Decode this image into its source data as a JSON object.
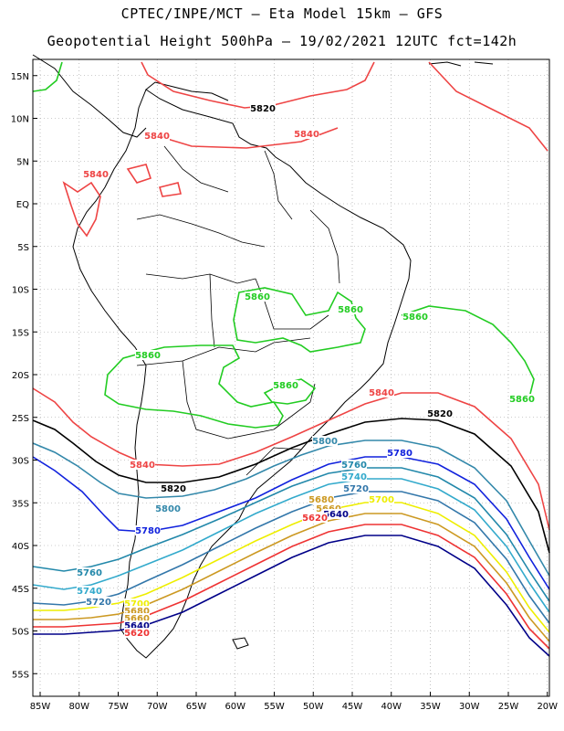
{
  "header": {
    "line1": "CPTEC/INPE/MCT –  Eta Model 15km – GFS",
    "line2": "Geopotential Height 500hPa – 19/02/2021 12UTC fct=142h"
  },
  "axes": {
    "lat_labels": [
      "15N",
      "10N",
      "5N",
      "EQ",
      "5S",
      "10S",
      "15S",
      "20S",
      "25S",
      "30S",
      "35S",
      "40S",
      "45S",
      "50S",
      "55S"
    ],
    "lon_labels": [
      "85W",
      "80W",
      "75W",
      "70W",
      "65W",
      "60W",
      "55W",
      "50W",
      "45W",
      "40W",
      "35W",
      "30W",
      "25W",
      "20W"
    ]
  },
  "colors": {
    "c5860": "#22cc22",
    "c5840": "#ee4444",
    "c5820": "#000000",
    "c5800": "#3388aa",
    "c5780": "#1122dd",
    "c5760": "#2288aa",
    "c5740": "#33aacc",
    "c5720": "#3377aa",
    "c5700": "#eeee00",
    "c5680": "#cc9922",
    "c5660": "#ee3333",
    "c5640": "#000088",
    "coast": "#000000",
    "grid": "#999999"
  },
  "contour_labels": [
    {
      "text": "5820",
      "color": "c5820"
    },
    {
      "text": "5840",
      "color": "c5840"
    },
    {
      "text": "5840",
      "color": "c5840"
    },
    {
      "text": "5840",
      "color": "c5840"
    },
    {
      "text": "5860",
      "color": "c5860"
    },
    {
      "text": "5860",
      "color": "c5860"
    },
    {
      "text": "5860",
      "color": "c5860"
    },
    {
      "text": "5860",
      "color": "c5860"
    },
    {
      "text": "5860",
      "color": "c5860"
    },
    {
      "text": "5860",
      "color": "c5860"
    },
    {
      "text": "5840",
      "color": "c5840"
    },
    {
      "text": "5820",
      "color": "c5820"
    },
    {
      "text": "5800",
      "color": "c5800"
    },
    {
      "text": "5780",
      "color": "c5780"
    },
    {
      "text": "5760",
      "color": "c5760"
    },
    {
      "text": "5740",
      "color": "c5740"
    },
    {
      "text": "5720",
      "color": "c5720"
    },
    {
      "text": "5700",
      "color": "c5700"
    },
    {
      "text": "5680",
      "color": "c5680"
    },
    {
      "text": "5660",
      "color": "c5680"
    },
    {
      "text": "5640",
      "color": "c5640"
    },
    {
      "text": "5620",
      "color": "c5660"
    },
    {
      "text": "5840",
      "color": "c5840"
    },
    {
      "text": "5820",
      "color": "c5820"
    },
    {
      "text": "5800",
      "color": "c5800"
    },
    {
      "text": "5780",
      "color": "c5780"
    },
    {
      "text": "5760",
      "color": "c5760"
    },
    {
      "text": "5740",
      "color": "c5740"
    },
    {
      "text": "5720",
      "color": "c5720"
    },
    {
      "text": "5700",
      "color": "c5700"
    },
    {
      "text": "5680",
      "color": "c5680"
    },
    {
      "text": "5660",
      "color": "c5680"
    },
    {
      "text": "5640",
      "color": "c5640"
    },
    {
      "text": "5620",
      "color": "c5660"
    }
  ]
}
